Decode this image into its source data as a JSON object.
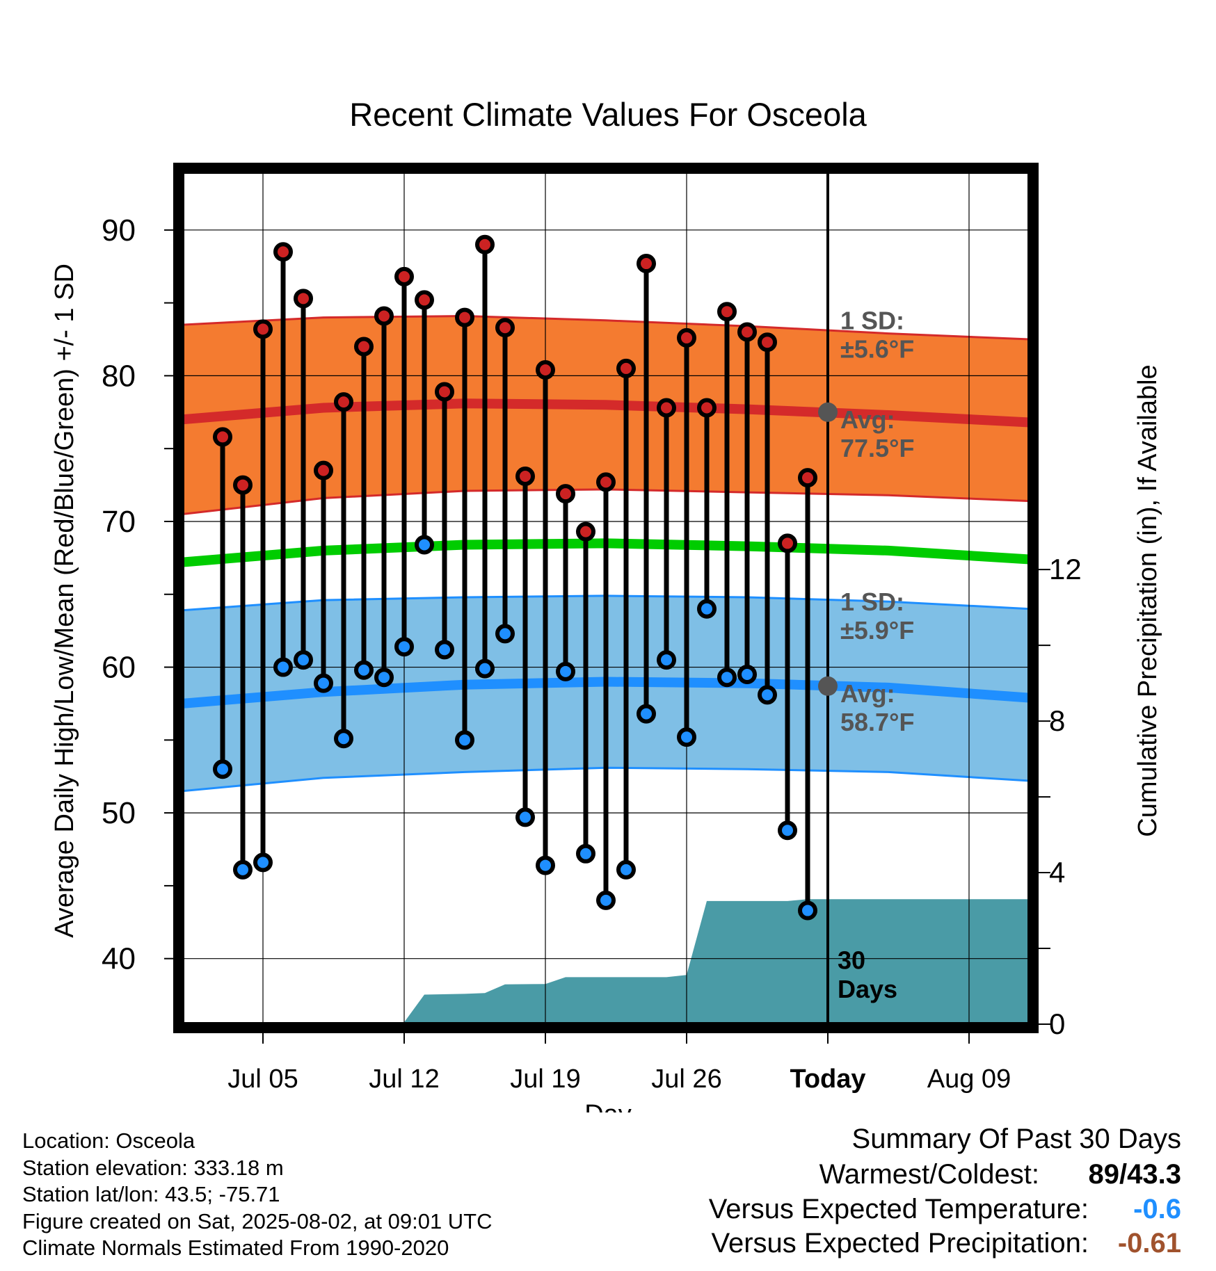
{
  "chart_data": {
    "type": "line",
    "title": "Recent Climate Values For Osceola",
    "xlabel": "Day",
    "ylabel": "Average Daily High/Low/Mean (Red/Blue/Green) +/- 1 SD",
    "y2label": "Cumulative Precipitation (in), If Available",
    "ylim": [
      35.5,
      94
    ],
    "y2lim": [
      0,
      22.5
    ],
    "xlim": [
      "2025-07-01",
      "2025-08-12"
    ],
    "x_tick_labels": [
      "Jul 05",
      "Jul 12",
      "Jul 19",
      "Jul 26",
      "Today",
      "Aug 09"
    ],
    "y_ticks": [
      40,
      50,
      60,
      70,
      80,
      90
    ],
    "y2_ticks": [
      0,
      4,
      8,
      12
    ],
    "grid": true,
    "today": "2025-08-02",
    "today_label": "30\nDays",
    "days": [
      "2025-07-03",
      "2025-07-04",
      "2025-07-05",
      "2025-07-06",
      "2025-07-07",
      "2025-07-08",
      "2025-07-09",
      "2025-07-10",
      "2025-07-11",
      "2025-07-12",
      "2025-07-13",
      "2025-07-14",
      "2025-07-15",
      "2025-07-16",
      "2025-07-17",
      "2025-07-18",
      "2025-07-19",
      "2025-07-20",
      "2025-07-21",
      "2025-07-22",
      "2025-07-23",
      "2025-07-24",
      "2025-07-25",
      "2025-07-26",
      "2025-07-27",
      "2025-07-28",
      "2025-07-29",
      "2025-07-30",
      "2025-07-31",
      "2025-08-01"
    ],
    "series": [
      {
        "name": "High",
        "values": [
          75.8,
          72.5,
          83.2,
          88.5,
          85.3,
          73.5,
          78.2,
          82,
          84.1,
          86.8,
          85.2,
          78.9,
          84,
          89,
          83.3,
          73.1,
          80.4,
          71.9,
          69.3,
          72.7,
          80.5,
          87.7,
          77.8,
          82.6,
          77.8,
          84.4,
          83,
          82.3,
          68.5,
          73
        ]
      },
      {
        "name": "Low",
        "values": [
          53,
          46.1,
          46.6,
          60,
          60.5,
          58.9,
          55.1,
          59.8,
          59.3,
          61.4,
          68.4,
          61.2,
          55,
          59.9,
          62.3,
          49.7,
          46.4,
          59.7,
          47.2,
          44,
          46.1,
          56.8,
          60.5,
          55.2,
          64,
          59.3,
          59.5,
          58.1,
          48.8,
          43.3
        ]
      }
    ],
    "normals": {
      "x": [
        "2025-07-01",
        "2025-07-08",
        "2025-07-15",
        "2025-07-22",
        "2025-07-29",
        "2025-08-05",
        "2025-08-12"
      ],
      "high_avg": [
        77,
        77.8,
        78.1,
        78,
        77.7,
        77.3,
        76.8
      ],
      "high_upper": [
        83.5,
        84,
        84.1,
        83.8,
        83.4,
        82.9,
        82.5
      ],
      "high_lower": [
        70.5,
        71.6,
        72.1,
        72.2,
        72,
        71.8,
        71.4
      ],
      "mean_avg": [
        67.2,
        68,
        68.4,
        68.5,
        68.3,
        68,
        67.4
      ],
      "low_avg": [
        57.5,
        58.3,
        58.8,
        59,
        58.9,
        58.6,
        57.9
      ],
      "low_upper": [
        63.9,
        64.6,
        64.8,
        64.9,
        64.8,
        64.5,
        64
      ],
      "low_lower": [
        51.5,
        52.4,
        52.8,
        53.1,
        53,
        52.8,
        52.2
      ]
    },
    "precipitation": {
      "x": [
        "2025-07-01",
        "2025-07-04",
        "2025-07-07",
        "2025-07-11",
        "2025-07-12",
        "2025-07-13",
        "2025-07-15",
        "2025-07-16",
        "2025-07-17",
        "2025-07-19",
        "2025-07-20",
        "2025-07-23",
        "2025-07-25",
        "2025-07-26",
        "2025-07-27",
        "2025-07-31",
        "2025-08-01",
        "2025-08-12"
      ],
      "values": [
        0,
        0,
        0.03,
        0.03,
        0.05,
        0.78,
        0.8,
        0.82,
        1.05,
        1.06,
        1.24,
        1.24,
        1.24,
        1.3,
        3.25,
        3.25,
        3.3,
        3.3
      ]
    },
    "annotations": {
      "high_sd": "1 SD:\n±5.6°F",
      "high_avg": "Avg:\n77.5°F",
      "low_sd": "1 SD:\n±5.9°F",
      "low_avg": "Avg:\n58.7°F"
    },
    "colors": {
      "high_band": "#f47b30",
      "high_line": "#d42a2a",
      "high_edge": "#d42a2a",
      "low_band": "#7fbfe6",
      "low_line": "#1f8fff",
      "low_edge": "#1f8fff",
      "mean_line": "#00cc00",
      "precip": "#4a9ba6",
      "high_dot": "#cc2222",
      "low_dot": "#1f8fff",
      "annotation": "#555555"
    }
  },
  "footer": {
    "location": "Location: Osceola",
    "elevation": "Station elevation: 333.18 m",
    "latlon": "Station lat/lon: 43.5; -75.71",
    "created": "Figure created on Sat, 2025-08-02, at 09:01 UTC",
    "normals": "Climate Normals Estimated From 1990-2020"
  },
  "summary": {
    "title": "Summary Of Past 30 Days",
    "warmest_label": "Warmest/Coldest:",
    "warmest_value": "89/43.3",
    "temp_label": "Versus Expected Temperature:",
    "temp_value": "-0.6",
    "temp_color": "#1f8fff",
    "precip_label": "Versus Expected Precipitation:",
    "precip_value": "-0.61",
    "precip_color": "#a0522d"
  }
}
